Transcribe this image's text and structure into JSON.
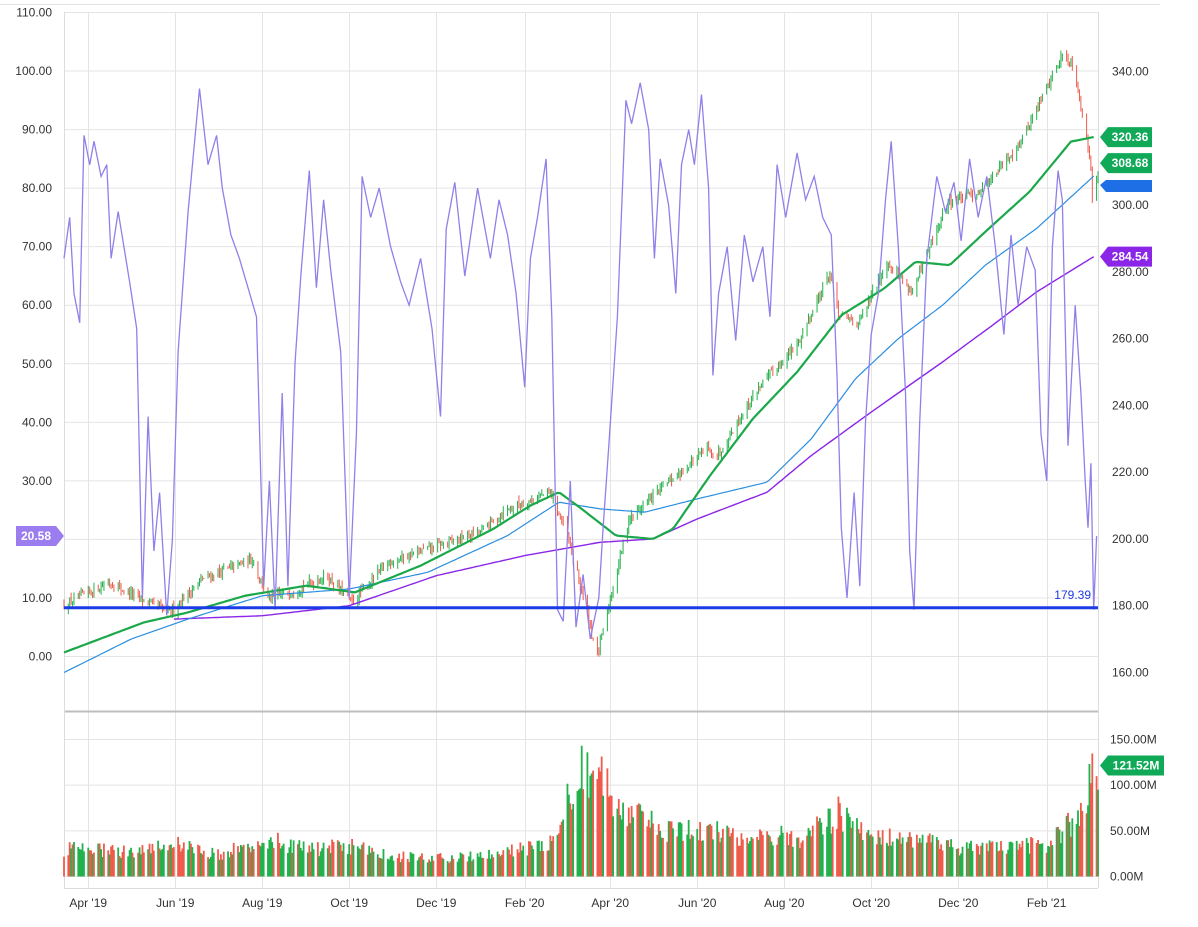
{
  "chart_data": [
    {
      "type": "line",
      "panel": "price",
      "left_axis": {
        "ticks": [
          "0.00",
          "10.00",
          "20.00",
          "30.00",
          "40.00",
          "50.00",
          "60.00",
          "70.00",
          "80.00",
          "90.00",
          "100.00",
          "110.00"
        ],
        "ylim": [
          0,
          110
        ]
      },
      "right_axis": {
        "ticks": [
          "160.00",
          "180.00",
          "200.00",
          "220.00",
          "240.00",
          "260.00",
          "280.00",
          "300.00",
          "320.00",
          "340.00"
        ],
        "ylim": [
          160,
          340
        ]
      },
      "x_labels": [
        "Apr '19",
        "Jun '19",
        "Aug '19",
        "Oct '19",
        "Dec '19",
        "Feb '20",
        "Apr '20",
        "Jun '20",
        "Aug '20",
        "Oct '20",
        "Dec '20",
        "Feb '21"
      ],
      "x_label_dates": [
        "2019-04-01",
        "2019-06-01",
        "2019-08-01",
        "2019-10-01",
        "2019-12-01",
        "2020-02-01",
        "2020-04-01",
        "2020-06-01",
        "2020-08-01",
        "2020-10-01",
        "2020-12-01",
        "2021-02-01"
      ],
      "x_range": [
        "2019-03-15",
        "2021-03-09"
      ],
      "grid": true,
      "candles_color_up": "#22b14c",
      "candles_color_down": "#ef5b4b",
      "price_anchors": [
        [
          "2019-03-15",
          180
        ],
        [
          "2019-04-15",
          187
        ],
        [
          "2019-05-08",
          182
        ],
        [
          "2019-05-28",
          178
        ],
        [
          "2019-06-20",
          188
        ],
        [
          "2019-07-25",
          194
        ],
        [
          "2019-08-05",
          182
        ],
        [
          "2019-08-20",
          184
        ],
        [
          "2019-09-15",
          189
        ],
        [
          "2019-10-03",
          181
        ],
        [
          "2019-10-28",
          193
        ],
        [
          "2019-11-25",
          197
        ],
        [
          "2019-12-31",
          202
        ],
        [
          "2020-01-20",
          209
        ],
        [
          "2020-02-19",
          214
        ],
        [
          "2020-03-01",
          202
        ],
        [
          "2020-03-10",
          188
        ],
        [
          "2020-03-23",
          165
        ],
        [
          "2020-04-14",
          206
        ],
        [
          "2020-05-01",
          213
        ],
        [
          "2020-06-08",
          227
        ],
        [
          "2020-06-15",
          225
        ],
        [
          "2020-07-15",
          246
        ],
        [
          "2020-08-10",
          258
        ],
        [
          "2020-09-02",
          280
        ],
        [
          "2020-09-08",
          267
        ],
        [
          "2020-09-23",
          265
        ],
        [
          "2020-10-12",
          283
        ],
        [
          "2020-10-30",
          274
        ],
        [
          "2020-11-24",
          301
        ],
        [
          "2020-12-15",
          304
        ],
        [
          "2021-01-05",
          314
        ],
        [
          "2021-01-15",
          320
        ],
        [
          "2021-02-12",
          345
        ],
        [
          "2021-02-20",
          342
        ],
        [
          "2021-03-04",
          312
        ],
        [
          "2021-03-05",
          303
        ],
        [
          "2021-03-06",
          308.68
        ]
      ],
      "sma_fast_anchors": [
        [
          "2019-03-15",
          166
        ],
        [
          "2019-05-10",
          175
        ],
        [
          "2019-06-10",
          178
        ],
        [
          "2019-07-20",
          183
        ],
        [
          "2019-09-01",
          186
        ],
        [
          "2019-10-05",
          184
        ],
        [
          "2019-11-20",
          192
        ],
        [
          "2020-01-10",
          203
        ],
        [
          "2020-02-05",
          210
        ],
        [
          "2020-02-25",
          214
        ],
        [
          "2020-03-12",
          209
        ],
        [
          "2020-04-05",
          201
        ],
        [
          "2020-05-01",
          200
        ],
        [
          "2020-05-15",
          203
        ],
        [
          "2020-06-10",
          219
        ],
        [
          "2020-07-10",
          236
        ],
        [
          "2020-08-10",
          250
        ],
        [
          "2020-09-10",
          267
        ],
        [
          "2020-10-10",
          275
        ],
        [
          "2020-11-01",
          283
        ],
        [
          "2020-11-25",
          282
        ],
        [
          "2020-12-20",
          292
        ],
        [
          "2021-01-20",
          304
        ],
        [
          "2021-02-18",
          319
        ],
        [
          "2021-03-06",
          320.36
        ]
      ],
      "sma_mid_anchors": [
        [
          "2019-03-15",
          160
        ],
        [
          "2019-05-01",
          170
        ],
        [
          "2019-06-10",
          176
        ],
        [
          "2019-08-01",
          183
        ],
        [
          "2019-10-01",
          185
        ],
        [
          "2019-11-25",
          190
        ],
        [
          "2020-01-20",
          201
        ],
        [
          "2020-02-25",
          211
        ],
        [
          "2020-03-25",
          209
        ],
        [
          "2020-04-25",
          208
        ],
        [
          "2020-06-01",
          212
        ],
        [
          "2020-07-20",
          217
        ],
        [
          "2020-08-20",
          230
        ],
        [
          "2020-09-20",
          248
        ],
        [
          "2020-10-20",
          260
        ],
        [
          "2020-11-20",
          270
        ],
        [
          "2020-12-20",
          282
        ],
        [
          "2021-01-25",
          293
        ],
        [
          "2021-03-06",
          308.68
        ]
      ],
      "sma_slow_anchors": [
        [
          "2019-05-31",
          176
        ],
        [
          "2019-08-01",
          177
        ],
        [
          "2019-10-01",
          180
        ],
        [
          "2019-12-01",
          189
        ],
        [
          "2020-02-01",
          195
        ],
        [
          "2020-03-25",
          199
        ],
        [
          "2020-05-01",
          200
        ],
        [
          "2020-06-01",
          206
        ],
        [
          "2020-07-20",
          214
        ],
        [
          "2020-08-20",
          225
        ],
        [
          "2020-10-01",
          238
        ],
        [
          "2020-11-20",
          253
        ],
        [
          "2020-12-25",
          264
        ],
        [
          "2021-01-25",
          274
        ],
        [
          "2021-03-06",
          284.54
        ]
      ],
      "oscillator_anchors": [
        [
          "2019-03-15",
          68
        ],
        [
          "2019-03-19",
          75
        ],
        [
          "2019-03-22",
          62
        ],
        [
          "2019-03-26",
          57
        ],
        [
          "2019-03-29",
          89
        ],
        [
          "2019-04-02",
          84
        ],
        [
          "2019-04-05",
          88
        ],
        [
          "2019-04-10",
          82
        ],
        [
          "2019-04-14",
          84
        ],
        [
          "2019-04-17",
          68
        ],
        [
          "2019-04-22",
          76
        ],
        [
          "2019-04-30",
          64
        ],
        [
          "2019-05-05",
          56
        ],
        [
          "2019-05-09",
          10
        ],
        [
          "2019-05-13",
          41
        ],
        [
          "2019-05-17",
          18
        ],
        [
          "2019-05-21",
          28
        ],
        [
          "2019-05-26",
          7
        ],
        [
          "2019-05-30",
          20
        ],
        [
          "2019-06-03",
          52
        ],
        [
          "2019-06-10",
          76
        ],
        [
          "2019-06-18",
          97
        ],
        [
          "2019-06-24",
          84
        ],
        [
          "2019-06-30",
          89
        ],
        [
          "2019-07-04",
          80
        ],
        [
          "2019-07-10",
          72
        ],
        [
          "2019-07-16",
          68
        ],
        [
          "2019-07-22",
          63
        ],
        [
          "2019-07-28",
          58
        ],
        [
          "2019-08-02",
          12
        ],
        [
          "2019-08-06",
          30
        ],
        [
          "2019-08-10",
          8
        ],
        [
          "2019-08-15",
          45
        ],
        [
          "2019-08-19",
          12
        ],
        [
          "2019-08-24",
          50
        ],
        [
          "2019-08-28",
          65
        ],
        [
          "2019-09-03",
          83
        ],
        [
          "2019-09-08",
          63
        ],
        [
          "2019-09-13",
          78
        ],
        [
          "2019-09-18",
          66
        ],
        [
          "2019-09-25",
          52
        ],
        [
          "2019-10-01",
          10
        ],
        [
          "2019-10-06",
          38
        ],
        [
          "2019-10-10",
          82
        ],
        [
          "2019-10-16",
          75
        ],
        [
          "2019-10-22",
          80
        ],
        [
          "2019-10-30",
          70
        ],
        [
          "2019-11-06",
          64
        ],
        [
          "2019-11-12",
          60
        ],
        [
          "2019-11-20",
          68
        ],
        [
          "2019-11-28",
          56
        ],
        [
          "2019-12-04",
          41
        ],
        [
          "2019-12-08",
          73
        ],
        [
          "2019-12-14",
          81
        ],
        [
          "2019-12-21",
          65
        ],
        [
          "2019-12-30",
          80
        ],
        [
          "2020-01-08",
          68
        ],
        [
          "2020-01-14",
          78
        ],
        [
          "2020-01-20",
          72
        ],
        [
          "2020-01-26",
          62
        ],
        [
          "2020-02-01",
          46
        ],
        [
          "2020-02-05",
          68
        ],
        [
          "2020-02-10",
          75
        ],
        [
          "2020-02-16",
          85
        ],
        [
          "2020-02-20",
          58
        ],
        [
          "2020-02-24",
          8
        ],
        [
          "2020-02-28",
          6
        ],
        [
          "2020-03-04",
          30
        ],
        [
          "2020-03-08",
          5
        ],
        [
          "2020-03-13",
          14
        ],
        [
          "2020-03-18",
          3
        ],
        [
          "2020-03-24",
          10
        ],
        [
          "2020-03-27",
          22
        ],
        [
          "2020-03-31",
          36
        ],
        [
          "2020-04-06",
          58
        ],
        [
          "2020-04-12",
          95
        ],
        [
          "2020-04-16",
          91
        ],
        [
          "2020-04-22",
          98
        ],
        [
          "2020-04-28",
          90
        ],
        [
          "2020-05-02",
          68
        ],
        [
          "2020-05-06",
          85
        ],
        [
          "2020-05-12",
          77
        ],
        [
          "2020-05-17",
          62
        ],
        [
          "2020-05-21",
          84
        ],
        [
          "2020-05-26",
          90
        ],
        [
          "2020-05-30",
          84
        ],
        [
          "2020-06-04",
          96
        ],
        [
          "2020-06-09",
          80
        ],
        [
          "2020-06-12",
          48
        ],
        [
          "2020-06-16",
          62
        ],
        [
          "2020-06-22",
          70
        ],
        [
          "2020-06-28",
          54
        ],
        [
          "2020-07-04",
          72
        ],
        [
          "2020-07-10",
          64
        ],
        [
          "2020-07-17",
          70
        ],
        [
          "2020-07-22",
          58
        ],
        [
          "2020-07-27",
          84
        ],
        [
          "2020-08-02",
          75
        ],
        [
          "2020-08-10",
          86
        ],
        [
          "2020-08-16",
          78
        ],
        [
          "2020-08-22",
          82
        ],
        [
          "2020-08-28",
          75
        ],
        [
          "2020-09-03",
          72
        ],
        [
          "2020-09-07",
          48
        ],
        [
          "2020-09-10",
          22
        ],
        [
          "2020-09-14",
          10
        ],
        [
          "2020-09-19",
          28
        ],
        [
          "2020-09-23",
          12
        ],
        [
          "2020-09-27",
          40
        ],
        [
          "2020-10-01",
          55
        ],
        [
          "2020-10-06",
          62
        ],
        [
          "2020-10-11",
          78
        ],
        [
          "2020-10-15",
          88
        ],
        [
          "2020-10-20",
          70
        ],
        [
          "2020-10-25",
          45
        ],
        [
          "2020-10-28",
          18
        ],
        [
          "2020-10-31",
          8
        ],
        [
          "2020-11-04",
          40
        ],
        [
          "2020-11-09",
          68
        ],
        [
          "2020-11-16",
          82
        ],
        [
          "2020-11-22",
          76
        ],
        [
          "2020-11-28",
          81
        ],
        [
          "2020-12-03",
          71
        ],
        [
          "2020-12-09",
          85
        ],
        [
          "2020-12-15",
          75
        ],
        [
          "2020-12-21",
          82
        ],
        [
          "2020-12-27",
          70
        ],
        [
          "2021-01-02",
          55
        ],
        [
          "2021-01-07",
          72
        ],
        [
          "2021-01-12",
          60
        ],
        [
          "2021-01-18",
          70
        ],
        [
          "2021-01-24",
          66
        ],
        [
          "2021-01-28",
          38
        ],
        [
          "2021-02-01",
          30
        ],
        [
          "2021-02-05",
          70
        ],
        [
          "2021-02-09",
          83
        ],
        [
          "2021-02-12",
          78
        ],
        [
          "2021-02-16",
          36
        ],
        [
          "2021-02-21",
          60
        ],
        [
          "2021-02-25",
          45
        ],
        [
          "2021-02-28",
          30
        ],
        [
          "2021-03-02",
          22
        ],
        [
          "2021-03-04",
          33
        ],
        [
          "2021-03-06",
          8
        ],
        [
          "2021-03-08",
          20.58
        ]
      ],
      "support_line": 179.39,
      "support_label": "179.39",
      "badges": [
        {
          "value": "320.36",
          "color": "#0fa958"
        },
        {
          "value": "308.68",
          "color": "#0fa958"
        },
        {
          "value": "284.54",
          "color": "#8b25e8"
        },
        {
          "value": "20.58",
          "color": "#9b7df0"
        }
      ],
      "series_colors": {
        "sma_fast": "#1aa84a",
        "sma_mid": "#2a8ee0",
        "sma_slow": "#8b25e8",
        "oscillator": "#8f80ea",
        "support": "#1b3be6",
        "blue_tag": "#1e6ee6"
      }
    },
    {
      "type": "bar",
      "panel": "volume",
      "y_ticks": [
        "0.00M",
        "50.00M",
        "100.00M",
        "150.00M"
      ],
      "ylim": [
        0,
        150
      ],
      "last_value": 121.52,
      "badge": {
        "value": "121.52M",
        "color": "#0fa958"
      },
      "volume_anchors": [
        [
          "2019-03-15",
          30
        ],
        [
          "2019-04-10",
          29
        ],
        [
          "2019-05-01",
          27
        ],
        [
          "2019-05-15",
          34
        ],
        [
          "2019-06-01",
          36
        ],
        [
          "2019-07-01",
          24
        ],
        [
          "2019-08-05",
          42
        ],
        [
          "2019-09-01",
          30
        ],
        [
          "2019-10-01",
          33
        ],
        [
          "2019-11-01",
          22
        ],
        [
          "2019-12-01",
          20
        ],
        [
          "2020-01-01",
          22
        ],
        [
          "2020-02-01",
          30
        ],
        [
          "2020-02-20",
          40
        ],
        [
          "2020-03-01",
          90
        ],
        [
          "2020-03-12",
          120
        ],
        [
          "2020-03-23",
          110
        ],
        [
          "2020-04-05",
          85
        ],
        [
          "2020-04-20",
          65
        ],
        [
          "2020-05-10",
          48
        ],
        [
          "2020-06-10",
          50
        ],
        [
          "2020-07-10",
          45
        ],
        [
          "2020-08-15",
          42
        ],
        [
          "2020-09-08",
          70
        ],
        [
          "2020-09-25",
          50
        ],
        [
          "2020-10-20",
          40
        ],
        [
          "2020-11-10",
          45
        ],
        [
          "2020-12-01",
          30
        ],
        [
          "2021-01-01",
          32
        ],
        [
          "2021-02-01",
          35
        ],
        [
          "2021-02-20",
          60
        ],
        [
          "2021-03-04",
          105
        ],
        [
          "2021-03-08",
          121.52
        ]
      ]
    }
  ]
}
